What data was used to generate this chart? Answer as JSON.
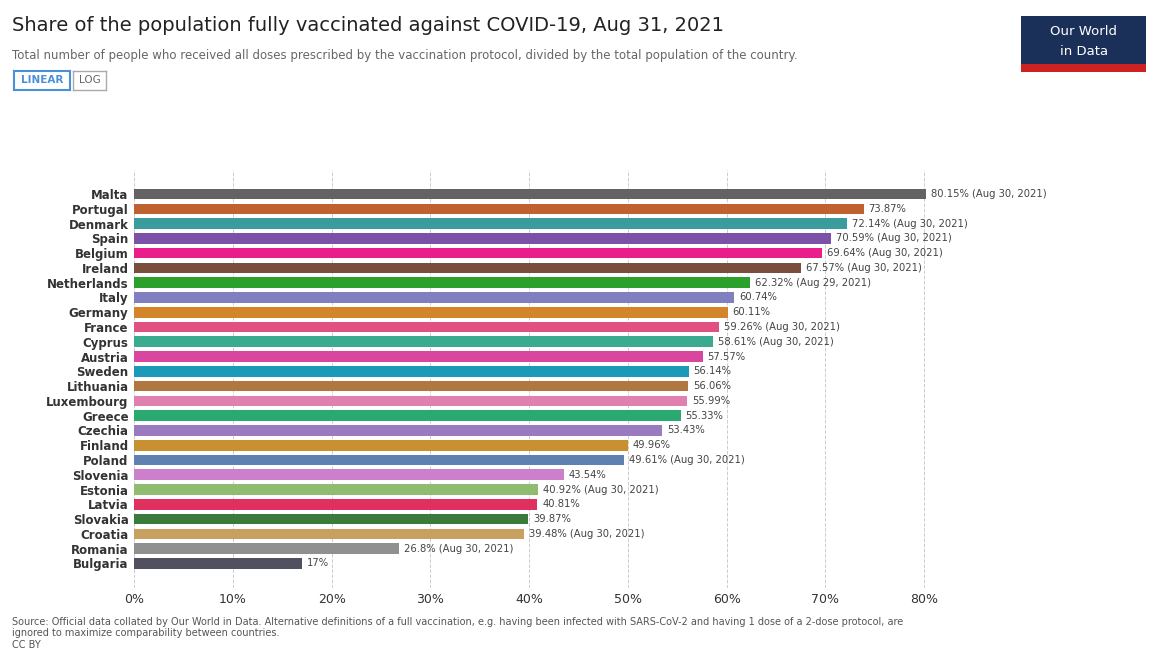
{
  "title": "Share of the population fully vaccinated against COVID-19, Aug 31, 2021",
  "subtitle": "Total number of people who received all doses prescribed by the vaccination protocol, divided by the total population of the country.",
  "countries": [
    "Malta",
    "Portugal",
    "Denmark",
    "Spain",
    "Belgium",
    "Ireland",
    "Netherlands",
    "Italy",
    "Germany",
    "France",
    "Cyprus",
    "Austria",
    "Sweden",
    "Lithuania",
    "Luxembourg",
    "Greece",
    "Czechia",
    "Finland",
    "Poland",
    "Slovenia",
    "Estonia",
    "Latvia",
    "Slovakia",
    "Croatia",
    "Romania",
    "Bulgaria"
  ],
  "values": [
    80.15,
    73.87,
    72.14,
    70.59,
    69.64,
    67.57,
    62.32,
    60.74,
    60.11,
    59.26,
    58.61,
    57.57,
    56.14,
    56.06,
    55.99,
    55.33,
    53.43,
    49.96,
    49.61,
    43.54,
    40.92,
    40.81,
    39.87,
    39.48,
    26.8,
    17.0
  ],
  "labels": [
    "80.15% (Aug 30, 2021)",
    "73.87%",
    "72.14% (Aug 30, 2021)",
    "70.59% (Aug 30, 2021)",
    "69.64% (Aug 30, 2021)",
    "67.57% (Aug 30, 2021)",
    "62.32% (Aug 29, 2021)",
    "60.74%",
    "60.11%",
    "59.26% (Aug 30, 2021)",
    "58.61% (Aug 30, 2021)",
    "57.57%",
    "56.14%",
    "56.06%",
    "55.99%",
    "55.33%",
    "53.43%",
    "49.96%",
    "49.61% (Aug 30, 2021)",
    "43.54%",
    "40.92% (Aug 30, 2021)",
    "40.81%",
    "39.87%",
    "39.48% (Aug 30, 2021)",
    "26.8% (Aug 30, 2021)",
    "17%"
  ],
  "colors": [
    "#636363",
    "#c0622f",
    "#3a9c9c",
    "#7b52a6",
    "#e91e8c",
    "#7a4e3c",
    "#2ca02c",
    "#8080c0",
    "#d4852a",
    "#e05080",
    "#3aaa90",
    "#d946a0",
    "#1a9ab8",
    "#b07840",
    "#e080b0",
    "#2aaa70",
    "#9b7bbf",
    "#c89030",
    "#6080b0",
    "#cc80cc",
    "#90bc70",
    "#e03060",
    "#3a7a3a",
    "#c8a060",
    "#909090",
    "#505060"
  ],
  "bar_height": 0.72,
  "xlim": [
    0,
    85
  ],
  "xticks": [
    0,
    10,
    20,
    30,
    40,
    50,
    60,
    70,
    80
  ],
  "source_text": "Source: Official data collated by Our World in Data. Alternative definitions of a full vaccination, e.g. having been infected with SARS-CoV-2 and having 1 dose of a 2-dose protocol, are\nignored to maximize comparability between countries.\nCC BY",
  "logo_bg": "#1a3058",
  "logo_red": "#cc2222",
  "logo_text_line1": "Our World",
  "logo_text_line2": "in Data",
  "linear_button_color": "#4a90d9",
  "grid_color": "#cccccc",
  "background_color": "#ffffff"
}
